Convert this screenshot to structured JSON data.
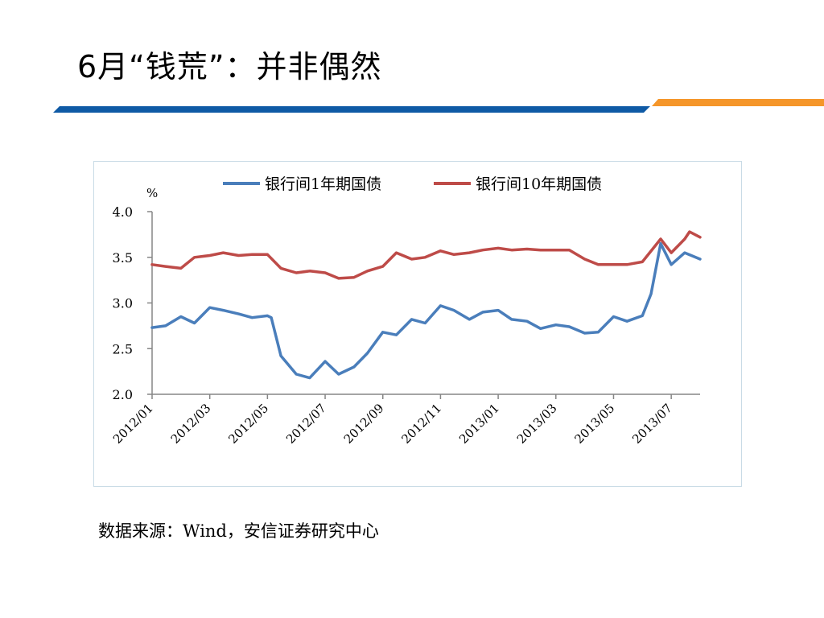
{
  "slide": {
    "title": "6月“钱荒”：并非偶然",
    "source": "数据来源：Wind，安信证券研究中心"
  },
  "colors": {
    "series1": "#4a7ebb",
    "series2": "#be4b48",
    "accent_blue": "#0f5aa5",
    "accent_orange": "#f5962a"
  },
  "chart_data": {
    "type": "line",
    "unit_label": "%",
    "ylim": [
      2.0,
      4.0
    ],
    "yticks": [
      "4.0",
      "3.5",
      "3.0",
      "2.5",
      "2.0"
    ],
    "xticks": [
      "2012/01",
      "2012/03",
      "2012/05",
      "2012/07",
      "2012/09",
      "2012/11",
      "2013/01",
      "2013/03",
      "2013/05",
      "2013/07"
    ],
    "xlim": [
      "2012/01",
      "2013/08"
    ],
    "legend_position": "top",
    "grid": false,
    "series": [
      {
        "name": "银行间1年期国债",
        "points": [
          [
            "2012/01",
            2.73
          ],
          [
            "2012/01/15",
            2.75
          ],
          [
            "2012/02",
            2.85
          ],
          [
            "2012/02/15",
            2.78
          ],
          [
            "2012/03",
            2.95
          ],
          [
            "2012/03/15",
            2.92
          ],
          [
            "2012/04",
            2.88
          ],
          [
            "2012/04/15",
            2.84
          ],
          [
            "2012/05",
            2.86
          ],
          [
            "2012/05/05",
            2.84
          ],
          [
            "2012/05/15",
            2.42
          ],
          [
            "2012/06",
            2.22
          ],
          [
            "2012/06/15",
            2.18
          ],
          [
            "2012/07",
            2.36
          ],
          [
            "2012/07/15",
            2.22
          ],
          [
            "2012/08",
            2.3
          ],
          [
            "2012/08/15",
            2.45
          ],
          [
            "2012/09",
            2.68
          ],
          [
            "2012/09/15",
            2.65
          ],
          [
            "2012/10",
            2.82
          ],
          [
            "2012/10/15",
            2.78
          ],
          [
            "2012/11",
            2.97
          ],
          [
            "2012/11/15",
            2.92
          ],
          [
            "2012/12",
            2.82
          ],
          [
            "2012/12/15",
            2.9
          ],
          [
            "2013/01",
            2.92
          ],
          [
            "2013/01/15",
            2.82
          ],
          [
            "2013/02",
            2.8
          ],
          [
            "2013/02/15",
            2.72
          ],
          [
            "2013/03",
            2.76
          ],
          [
            "2013/03/15",
            2.74
          ],
          [
            "2013/04",
            2.67
          ],
          [
            "2013/04/15",
            2.68
          ],
          [
            "2013/05",
            2.85
          ],
          [
            "2013/05/15",
            2.8
          ],
          [
            "2013/06",
            2.86
          ],
          [
            "2013/06/10",
            3.1
          ],
          [
            "2013/06/20",
            3.65
          ],
          [
            "2013/07",
            3.42
          ],
          [
            "2013/07/15",
            3.55
          ],
          [
            "2013/08",
            3.48
          ]
        ]
      },
      {
        "name": "银行间10年期国债",
        "points": [
          [
            "2012/01",
            3.42
          ],
          [
            "2012/01/15",
            3.4
          ],
          [
            "2012/02",
            3.38
          ],
          [
            "2012/02/15",
            3.5
          ],
          [
            "2012/03",
            3.52
          ],
          [
            "2012/03/15",
            3.55
          ],
          [
            "2012/04",
            3.52
          ],
          [
            "2012/04/15",
            3.53
          ],
          [
            "2012/05",
            3.53
          ],
          [
            "2012/05/15",
            3.38
          ],
          [
            "2012/06",
            3.33
          ],
          [
            "2012/06/15",
            3.35
          ],
          [
            "2012/07",
            3.33
          ],
          [
            "2012/07/15",
            3.27
          ],
          [
            "2012/08",
            3.28
          ],
          [
            "2012/08/15",
            3.35
          ],
          [
            "2012/09",
            3.4
          ],
          [
            "2012/09/15",
            3.55
          ],
          [
            "2012/10",
            3.48
          ],
          [
            "2012/10/15",
            3.5
          ],
          [
            "2012/11",
            3.57
          ],
          [
            "2012/11/15",
            3.53
          ],
          [
            "2012/12",
            3.55
          ],
          [
            "2012/12/15",
            3.58
          ],
          [
            "2013/01",
            3.6
          ],
          [
            "2013/01/15",
            3.58
          ],
          [
            "2013/02",
            3.59
          ],
          [
            "2013/02/15",
            3.58
          ],
          [
            "2013/03",
            3.58
          ],
          [
            "2013/03/15",
            3.58
          ],
          [
            "2013/04",
            3.48
          ],
          [
            "2013/04/15",
            3.42
          ],
          [
            "2013/05",
            3.42
          ],
          [
            "2013/05/15",
            3.42
          ],
          [
            "2013/06",
            3.45
          ],
          [
            "2013/06/20",
            3.7
          ],
          [
            "2013/07",
            3.55
          ],
          [
            "2013/07/15",
            3.7
          ],
          [
            "2013/07/20",
            3.78
          ],
          [
            "2013/08",
            3.72
          ]
        ]
      }
    ]
  }
}
